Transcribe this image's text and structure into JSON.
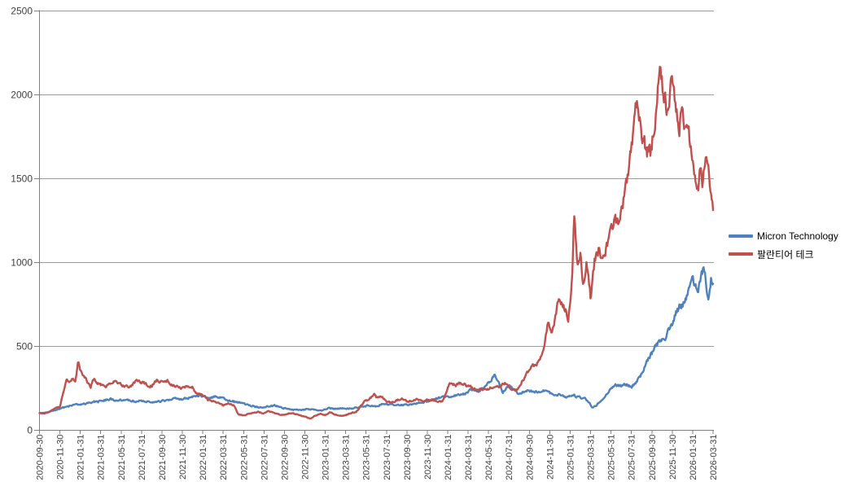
{
  "chart_data": {
    "type": "line",
    "title": "",
    "x_axis": {
      "labels": [
        "2020-09-30",
        "2020-11-30",
        "2021-01-31",
        "2021-03-31",
        "2021-05-31",
        "2021-07-31",
        "2021-09-30",
        "2021-11-30",
        "2022-01-31",
        "2022-03-31",
        "2022-05-31",
        "2022-07-31",
        "2022-09-30",
        "2022-11-30",
        "2023-01-31",
        "2023-03-31",
        "2023-05-31",
        "2023-07-31",
        "2023-09-30",
        "2023-11-30",
        "2024-01-31",
        "2024-03-31",
        "2024-05-31",
        "2024-07-31",
        "2024-09-30",
        "2024-11-30",
        "2025-01-31",
        "2025-03-31",
        "2025-05-31",
        "2025-07-31",
        "2025-09-30",
        "2025-11-30",
        "2026-01-31",
        "2026-03-31"
      ],
      "label_rotation_deg": -90,
      "label_interval_months": 2
    },
    "y_axis": {
      "min": 0,
      "max": 2500,
      "step": 500,
      "ticks": [
        0,
        500,
        1000,
        1500,
        2000,
        2500
      ]
    },
    "x_keypoint_unit": "months after 2020-09-30 (0 = 2020-09-30, 66 = 2026-03-31)",
    "x_range": [
      0,
      66
    ],
    "grid": "horizontal-major",
    "legend_position": "right",
    "series": [
      {
        "name": "Micron Technology",
        "color": "#4F81BD",
        "keypoints": [
          [
            0,
            100
          ],
          [
            0.7,
            104
          ],
          [
            1.3,
            113
          ],
          [
            2,
            124
          ],
          [
            2.7,
            137
          ],
          [
            3.3,
            147
          ],
          [
            4,
            151
          ],
          [
            4.7,
            158
          ],
          [
            5.3,
            164
          ],
          [
            6,
            171
          ],
          [
            6.7,
            179
          ],
          [
            7,
            185
          ],
          [
            7.4,
            172
          ],
          [
            8,
            179
          ],
          [
            8.7,
            174
          ],
          [
            9.3,
            169
          ],
          [
            10,
            175
          ],
          [
            10.7,
            169
          ],
          [
            11.3,
            164
          ],
          [
            12,
            171
          ],
          [
            12.7,
            179
          ],
          [
            13.3,
            185
          ],
          [
            14,
            181
          ],
          [
            14.7,
            191
          ],
          [
            15.3,
            199
          ],
          [
            15.7,
            207
          ],
          [
            16.2,
            195
          ],
          [
            16.6,
            183
          ],
          [
            17,
            195
          ],
          [
            17.5,
            199
          ],
          [
            18,
            189
          ],
          [
            18.5,
            175
          ],
          [
            19,
            169
          ],
          [
            19.7,
            161
          ],
          [
            20.3,
            149
          ],
          [
            21,
            139
          ],
          [
            21.7,
            132
          ],
          [
            22.3,
            141
          ],
          [
            23,
            145
          ],
          [
            23.7,
            132
          ],
          [
            24.3,
            126
          ],
          [
            25,
            122
          ],
          [
            25.7,
            117
          ],
          [
            26.3,
            126
          ],
          [
            27,
            118
          ],
          [
            27.7,
            113
          ],
          [
            28.3,
            129
          ],
          [
            29,
            126
          ],
          [
            29.7,
            130
          ],
          [
            30.3,
            127
          ],
          [
            31,
            132
          ],
          [
            31.7,
            139
          ],
          [
            32.3,
            145
          ],
          [
            33,
            142
          ],
          [
            33.7,
            156
          ],
          [
            34.3,
            149
          ],
          [
            35,
            152
          ],
          [
            35.7,
            149
          ],
          [
            36.3,
            151
          ],
          [
            37,
            157
          ],
          [
            37.7,
            167
          ],
          [
            38.3,
            177
          ],
          [
            39,
            189
          ],
          [
            39.7,
            195
          ],
          [
            40.3,
            199
          ],
          [
            41,
            206
          ],
          [
            41.7,
            217
          ],
          [
            42.3,
            239
          ],
          [
            43,
            229
          ],
          [
            43.7,
            261
          ],
          [
            44.3,
            299
          ],
          [
            44.6,
            324
          ],
          [
            45,
            287
          ],
          [
            45.4,
            227
          ],
          [
            45.8,
            251
          ],
          [
            46.2,
            261
          ],
          [
            46.6,
            239
          ],
          [
            47,
            211
          ],
          [
            47.4,
            227
          ],
          [
            48,
            235
          ],
          [
            48.6,
            223
          ],
          [
            49.2,
            232
          ],
          [
            49.8,
            225
          ],
          [
            50.4,
            209
          ],
          [
            51,
            211
          ],
          [
            51.6,
            195
          ],
          [
            52.2,
            206
          ],
          [
            52.8,
            197
          ],
          [
            53.4,
            189
          ],
          [
            53.8,
            169
          ],
          [
            54.2,
            132
          ],
          [
            54.6,
            149
          ],
          [
            55,
            171
          ],
          [
            55.5,
            211
          ],
          [
            56,
            241
          ],
          [
            56.5,
            267
          ],
          [
            57,
            259
          ],
          [
            57.5,
            271
          ],
          [
            58,
            255
          ],
          [
            58.5,
            287
          ],
          [
            59,
            334
          ],
          [
            59.4,
            391
          ],
          [
            59.8,
            437
          ],
          [
            60.2,
            477
          ],
          [
            60.6,
            514
          ],
          [
            61,
            545
          ],
          [
            61.3,
            529
          ],
          [
            61.6,
            602
          ],
          [
            62,
            631
          ],
          [
            62.4,
            699
          ],
          [
            62.8,
            735
          ],
          [
            63.1,
            748
          ],
          [
            63.5,
            796
          ],
          [
            63.9,
            917
          ],
          [
            64.2,
            874
          ],
          [
            64.5,
            825
          ],
          [
            64.8,
            890
          ],
          [
            65.1,
            971
          ],
          [
            65.5,
            786
          ],
          [
            65.8,
            893
          ],
          [
            66,
            869
          ]
        ]
      },
      {
        "name": "팔란티어 테크",
        "color": "#C0504D",
        "keypoints": [
          [
            0,
            100
          ],
          [
            0.5,
            97
          ],
          [
            1,
            107
          ],
          [
            1.5,
            128
          ],
          [
            2,
            135
          ],
          [
            2.4,
            240
          ],
          [
            2.7,
            300
          ],
          [
            3,
            280
          ],
          [
            3.2,
            310
          ],
          [
            3.5,
            288
          ],
          [
            3.8,
            418
          ],
          [
            4,
            360
          ],
          [
            4.3,
            320
          ],
          [
            4.6,
            298
          ],
          [
            5,
            255
          ],
          [
            5.3,
            303
          ],
          [
            5.6,
            280
          ],
          [
            6,
            268
          ],
          [
            6.5,
            254
          ],
          [
            7,
            278
          ],
          [
            7.5,
            293
          ],
          [
            8,
            268
          ],
          [
            8.5,
            257
          ],
          [
            9,
            261
          ],
          [
            9.5,
            298
          ],
          [
            10,
            288
          ],
          [
            10.5,
            271
          ],
          [
            11,
            261
          ],
          [
            11.5,
            298
          ],
          [
            12,
            284
          ],
          [
            12.5,
            293
          ],
          [
            13,
            267
          ],
          [
            13.5,
            257
          ],
          [
            14,
            247
          ],
          [
            14.5,
            261
          ],
          [
            15,
            254
          ],
          [
            15.3,
            221
          ],
          [
            16,
            204
          ],
          [
            16.5,
            179
          ],
          [
            17,
            171
          ],
          [
            17.5,
            159
          ],
          [
            18,
            147
          ],
          [
            18.3,
            157
          ],
          [
            19,
            149
          ],
          [
            19.5,
            92
          ],
          [
            20,
            85
          ],
          [
            20.5,
            97
          ],
          [
            21,
            102
          ],
          [
            21.5,
            107
          ],
          [
            22,
            99
          ],
          [
            22.5,
            111
          ],
          [
            23,
            104
          ],
          [
            23.7,
            87
          ],
          [
            24,
            91
          ],
          [
            24.5,
            99
          ],
          [
            25,
            95
          ],
          [
            25.5,
            87
          ],
          [
            26,
            79
          ],
          [
            26.5,
            67
          ],
          [
            27,
            84
          ],
          [
            27.5,
            94
          ],
          [
            28,
            87
          ],
          [
            28.5,
            104
          ],
          [
            29,
            91
          ],
          [
            29.5,
            84
          ],
          [
            30,
            87
          ],
          [
            30.5,
            101
          ],
          [
            31,
            104
          ],
          [
            31.8,
            167
          ],
          [
            32.3,
            184
          ],
          [
            32.8,
            207
          ],
          [
            33,
            194
          ],
          [
            33.5,
            199
          ],
          [
            34,
            171
          ],
          [
            34.5,
            161
          ],
          [
            35,
            177
          ],
          [
            35.5,
            184
          ],
          [
            36,
            171
          ],
          [
            36.5,
            169
          ],
          [
            37,
            181
          ],
          [
            37.5,
            171
          ],
          [
            38,
            177
          ],
          [
            38.5,
            181
          ],
          [
            39,
            171
          ],
          [
            39.5,
            167
          ],
          [
            40,
            254
          ],
          [
            40.3,
            279
          ],
          [
            40.8,
            267
          ],
          [
            41.3,
            281
          ],
          [
            41.8,
            269
          ],
          [
            42.3,
            257
          ],
          [
            42.8,
            239
          ],
          [
            43.3,
            244
          ],
          [
            43.8,
            237
          ],
          [
            44.3,
            254
          ],
          [
            44.8,
            251
          ],
          [
            45.3,
            267
          ],
          [
            45.8,
            281
          ],
          [
            46,
            261
          ],
          [
            46.3,
            231
          ],
          [
            46.8,
            241
          ],
          [
            47.3,
            290
          ],
          [
            47.8,
            340
          ],
          [
            48,
            355
          ],
          [
            48.3,
            395
          ],
          [
            48.6,
            385
          ],
          [
            49,
            420
          ],
          [
            49.3,
            450
          ],
          [
            49.6,
            560
          ],
          [
            49.8,
            640
          ],
          [
            50,
            600
          ],
          [
            50.2,
            565
          ],
          [
            50.5,
            660
          ],
          [
            50.8,
            777
          ],
          [
            51,
            760
          ],
          [
            51.3,
            735
          ],
          [
            51.6,
            700
          ],
          [
            51.8,
            660
          ],
          [
            52,
            730
          ],
          [
            52.2,
            940
          ],
          [
            52.4,
            1300
          ],
          [
            52.7,
            1000
          ],
          [
            53,
            1060
          ],
          [
            53.3,
            840
          ],
          [
            53.6,
            1010
          ],
          [
            54,
            780
          ],
          [
            54.4,
            1010
          ],
          [
            54.8,
            1070
          ],
          [
            55.2,
            1000
          ],
          [
            55.6,
            1090
          ],
          [
            56,
            1200
          ],
          [
            56.4,
            1250
          ],
          [
            56.8,
            1210
          ],
          [
            57.2,
            1350
          ],
          [
            57.6,
            1480
          ],
          [
            57.9,
            1660
          ],
          [
            58.2,
            1744
          ],
          [
            58.6,
            1977
          ],
          [
            58.9,
            1790
          ],
          [
            59.2,
            1750
          ],
          [
            59.5,
            1665
          ],
          [
            59.9,
            1650
          ],
          [
            60.2,
            1790
          ],
          [
            60.5,
            1930
          ],
          [
            60.75,
            2172
          ],
          [
            61,
            2060
          ],
          [
            61.2,
            2020
          ],
          [
            61.5,
            1890
          ],
          [
            61.9,
            2060
          ],
          [
            62.3,
            1950
          ],
          [
            62.7,
            1820
          ],
          [
            62.9,
            1910
          ],
          [
            63.1,
            1805
          ],
          [
            63.5,
            1770
          ],
          [
            63.9,
            1660
          ],
          [
            64.2,
            1490
          ],
          [
            64.5,
            1415
          ],
          [
            64.7,
            1555
          ],
          [
            65,
            1460
          ],
          [
            65.3,
            1635
          ],
          [
            65.6,
            1520
          ],
          [
            65.8,
            1440
          ],
          [
            66,
            1350
          ]
        ]
      }
    ]
  },
  "legend": {
    "items": [
      {
        "label": "Micron Technology",
        "color": "#4F81BD"
      },
      {
        "label": "팔란티어 테크",
        "color": "#C0504D"
      }
    ]
  },
  "colors": {
    "background": "#ffffff",
    "gridline": "#9c9c9c",
    "axis_line": "#7f7f7f",
    "tick_label": "#3f3f3f",
    "series_blue": "#4F81BD",
    "series_red": "#C0504D"
  }
}
